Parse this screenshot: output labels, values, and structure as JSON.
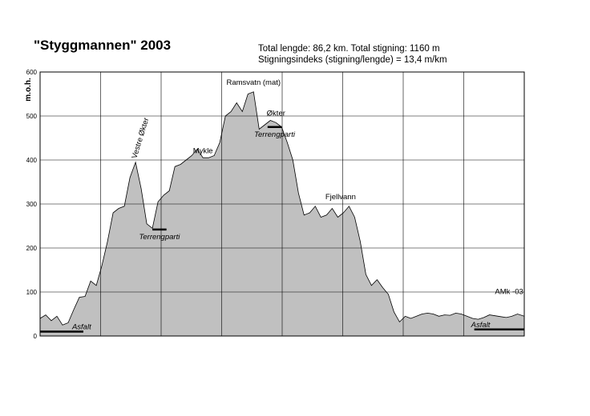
{
  "header": {
    "title": "\"Styggmannen\" 2003",
    "stats_line1": "Total lengde: 86,2 km. Total stigning: 1160 m",
    "stats_line2": "Stigningsindeks (stigning/lengde) = 13,4  m/km"
  },
  "colors": {
    "fill": "#c0c0c0",
    "grid": "#000000",
    "segment": "#000000"
  },
  "chart_data": {
    "type": "area",
    "title": "\"Styggmannen\" 2003",
    "ylabel": "m.o.h.",
    "xlabel": "",
    "ylim": [
      0,
      600
    ],
    "yticks": [
      0,
      100,
      200,
      300,
      400,
      500,
      600
    ],
    "xlim": [
      0,
      86.2
    ],
    "xticks_hidden": true,
    "grid": true,
    "x": [
      0,
      1,
      2,
      3,
      4,
      5,
      6,
      7,
      8,
      9,
      10,
      11,
      12,
      13,
      14,
      15,
      16,
      17,
      18,
      19,
      20,
      21,
      22,
      23,
      24,
      25,
      26,
      27,
      28,
      29,
      30,
      31,
      32,
      33,
      34,
      35,
      36,
      37,
      38,
      39,
      40,
      41,
      42,
      43,
      44,
      45,
      46,
      47,
      48,
      49,
      50,
      51,
      52,
      53,
      54,
      55,
      56,
      57,
      58,
      59,
      60,
      61,
      62,
      63,
      64,
      65,
      66,
      67,
      68,
      69,
      70,
      71,
      72,
      73,
      74,
      75,
      76,
      77,
      78,
      79,
      80,
      81,
      82,
      83,
      84,
      85,
      86.2
    ],
    "elevation": [
      40,
      48,
      35,
      45,
      25,
      30,
      60,
      88,
      90,
      125,
      115,
      160,
      215,
      280,
      290,
      295,
      360,
      395,
      335,
      255,
      245,
      305,
      320,
      330,
      385,
      390,
      400,
      410,
      425,
      405,
      405,
      410,
      440,
      500,
      510,
      530,
      510,
      550,
      555,
      470,
      480,
      490,
      485,
      475,
      440,
      400,
      325,
      275,
      280,
      295,
      270,
      275,
      290,
      270,
      280,
      295,
      270,
      215,
      140,
      115,
      128,
      110,
      95,
      55,
      32,
      45,
      40,
      45,
      50,
      52,
      50,
      45,
      48,
      47,
      52,
      50,
      45,
      40,
      38,
      42,
      48,
      46,
      44,
      42,
      45,
      50,
      45
    ],
    "annotations": [
      {
        "label": "Vestre Økter",
        "x": 17,
        "y": 395
      },
      {
        "label": "Mykle",
        "x": 29,
        "y": 405
      },
      {
        "label": "Ramsvatn (mat)",
        "x": 38,
        "y": 560
      },
      {
        "label": "Økter",
        "x": 42,
        "y": 490
      },
      {
        "label": "Fjellvann",
        "x": 53.5,
        "y": 300
      },
      {
        "label": "AMk -03",
        "x": 83.5,
        "y": 85
      }
    ],
    "segments": [
      {
        "label": "Asfalt",
        "x_start": 0,
        "x_end": 7.7,
        "y": 10,
        "side": "left"
      },
      {
        "label": "Terrengparti",
        "x_start": 20,
        "x_end": 22.5,
        "y": 242,
        "side": "below"
      },
      {
        "label": "Terrengparti",
        "x_start": 40.5,
        "x_end": 43,
        "y": 475,
        "side": "below"
      },
      {
        "label": "Asfalt",
        "x_start": 77.3,
        "x_end": 86.2,
        "y": 15,
        "side": "right"
      }
    ]
  }
}
